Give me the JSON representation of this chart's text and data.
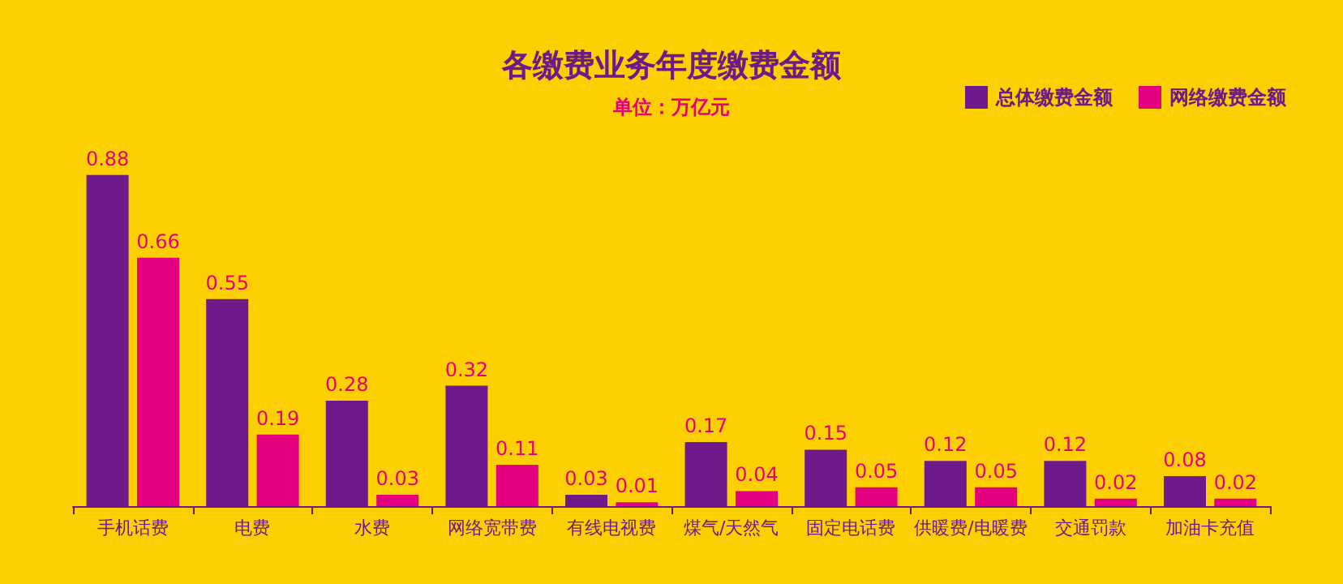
{
  "chart_data": {
    "type": "bar",
    "title": "各缴费业务年度缴费金额",
    "subtitle": "单位：万亿元",
    "categories": [
      "手机话费",
      "电费",
      "水费",
      "网络宽带费",
      "有线电视费",
      "煤气/天然气",
      "固定电话费",
      "供暖费/电暖费",
      "交通罚款",
      "加油卡充值"
    ],
    "series": [
      {
        "name": "总体缴费金额",
        "color": "#6e1a8a",
        "values": [
          0.88,
          0.55,
          0.28,
          0.32,
          0.03,
          0.17,
          0.15,
          0.12,
          0.12,
          0.08
        ]
      },
      {
        "name": "网络缴费金额",
        "color": "#e4007f",
        "values": [
          0.66,
          0.19,
          0.03,
          0.11,
          0.01,
          0.04,
          0.05,
          0.05,
          0.02,
          0.02
        ]
      }
    ],
    "data_labels": true,
    "legend": "top right"
  }
}
